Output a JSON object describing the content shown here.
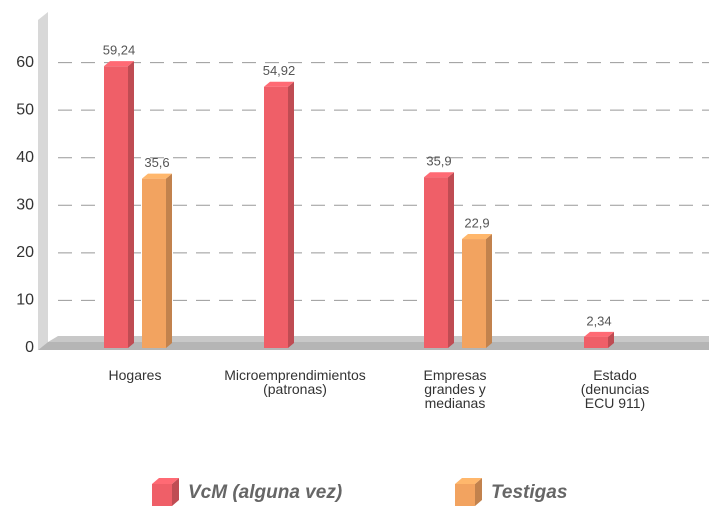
{
  "chart_data": {
    "type": "bar3d",
    "categories": [
      "Hogares",
      "Microemprendimientos\n(patronas)",
      "Empresas\ngrandes y\nmedianas",
      "Estado\n(denuncias\nECU 911)"
    ],
    "series": [
      {
        "name": "VcM (alguna vez)",
        "color": "#ef5f68",
        "values": [
          59.24,
          54.92,
          35.9,
          2.34
        ],
        "value_labels": [
          "59,24",
          "54,92",
          "35,9",
          "2,34"
        ]
      },
      {
        "name": "Testigas",
        "color": "#f2a360",
        "values": [
          35.6,
          null,
          22.9,
          null
        ],
        "value_labels": [
          "35,6",
          null,
          "22,9",
          null
        ]
      }
    ],
    "ylim": [
      0,
      70
    ],
    "yticks": [
      0,
      10,
      20,
      30,
      40,
      50,
      60
    ],
    "grid": true
  }
}
